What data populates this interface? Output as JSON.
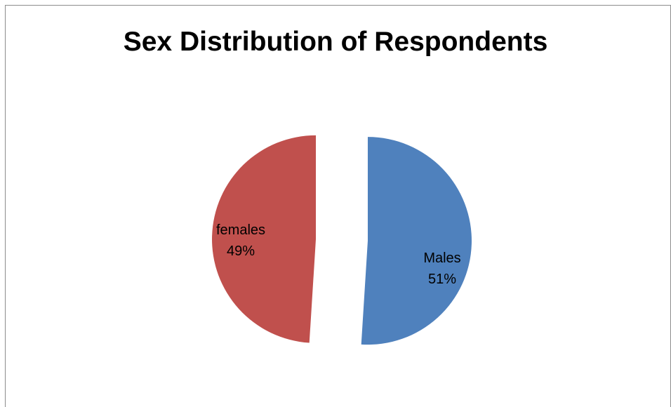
{
  "chart_data": {
    "type": "pie",
    "title": "Sex Distribution of Respondents",
    "slices": [
      {
        "label": "Males",
        "value": 51,
        "value_label": "51%",
        "color": "#4f81bd"
      },
      {
        "label": "females",
        "value": 49,
        "value_label": "49%",
        "color": "#c0504d"
      }
    ],
    "exploded": true,
    "legend": "none"
  }
}
